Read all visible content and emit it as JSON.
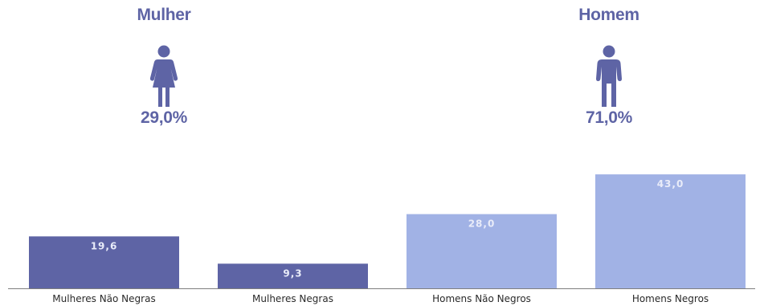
{
  "colors": {
    "mulher": "#5e64a5",
    "homem": "#a1b2e5",
    "label_text": "#e9ecf9",
    "axis_text": "#2a2a2a",
    "axis_line": "#7f7f7f"
  },
  "summary": {
    "mulher": {
      "title": "Mulher",
      "percent": "29,0%",
      "icon": "woman-icon"
    },
    "homem": {
      "title": "Homem",
      "percent": "71,0%",
      "icon": "man-icon"
    }
  },
  "chart_data": {
    "type": "bar",
    "categories": [
      "Mulheres Não Negras",
      "Mulheres Negras",
      "Homens Não Negros",
      "Homens Negros"
    ],
    "values": [
      19.6,
      9.3,
      28.0,
      43.0
    ],
    "value_labels": [
      "19,6",
      "9,3",
      "28,0",
      "43,0"
    ],
    "bar_groups": [
      "mulher",
      "mulher",
      "homem",
      "homem"
    ],
    "title": "",
    "xlabel": "",
    "ylabel": "",
    "ylim": [
      0,
      50
    ],
    "grid": false,
    "legend": "none"
  }
}
